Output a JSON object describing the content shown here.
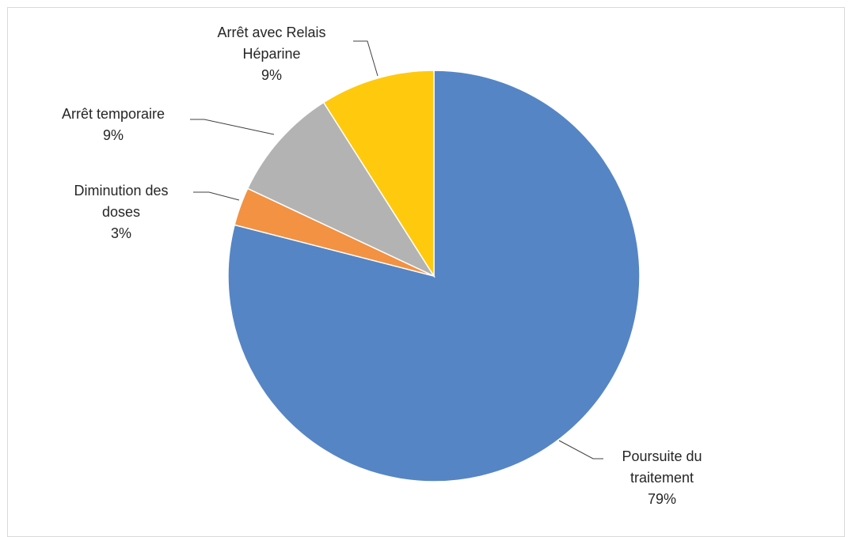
{
  "chart_data": {
    "type": "pie",
    "title": "",
    "slices": [
      {
        "label_lines": [
          "Poursuite du",
          "traitement"
        ],
        "pct_label": "79%",
        "value": 79,
        "color": "#5585C5"
      },
      {
        "label_lines": [
          "Diminution des",
          "doses"
        ],
        "pct_label": "3%",
        "value": 3,
        "color": "#F29242"
      },
      {
        "label_lines": [
          "Arrêt temporaire"
        ],
        "pct_label": "9%",
        "value": 9,
        "color": "#B3B3B3"
      },
      {
        "label_lines": [
          "Arrêt avec Relais",
          "Héparine"
        ],
        "pct_label": "9%",
        "value": 9,
        "color": "#FFC90E"
      }
    ],
    "start": "12 o'clock",
    "direction": "clockwise",
    "legend": "none",
    "data_labels": "outside-with-leader-lines"
  }
}
